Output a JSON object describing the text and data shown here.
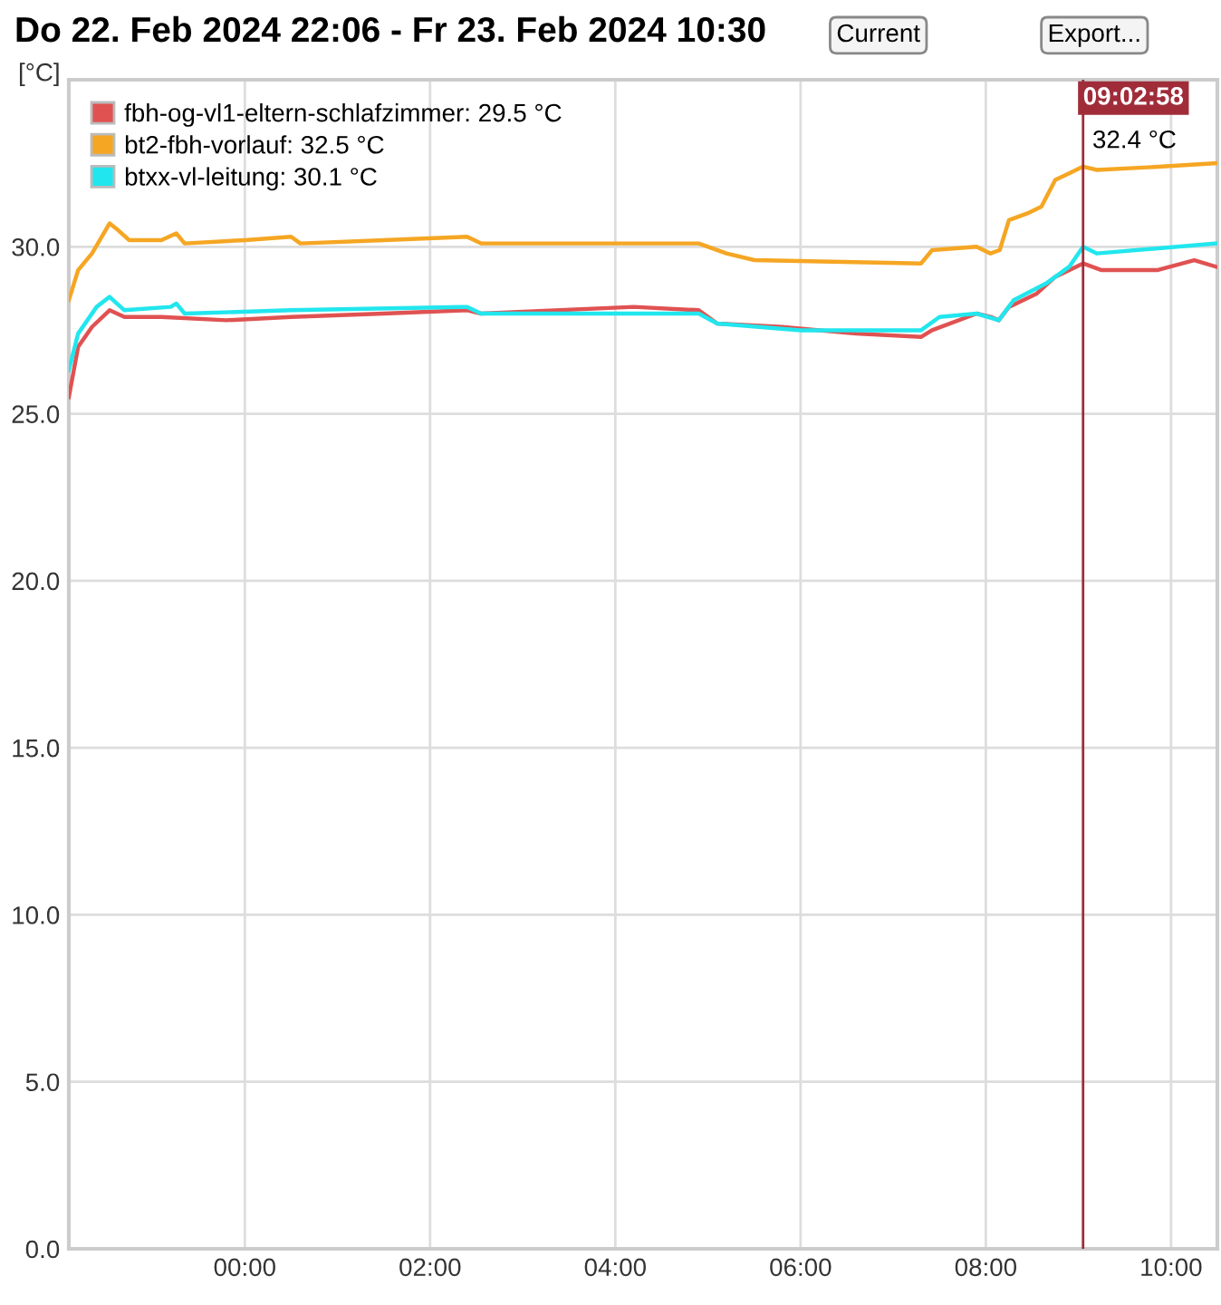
{
  "chart_data": {
    "type": "line",
    "title": "Do 22. Feb 2024 22:06 - Fr 23. Feb 2024 10:30",
    "ylabel": "[°C]",
    "annotations": [
      "Current",
      "Export...",
      {
        "text": "32.4 °C",
        "x": 9.05,
        "y": 32.4
      }
    ],
    "xlim": [
      -1.9,
      10.5
    ],
    "xticks": [
      {
        "value": 0,
        "label": "00:00"
      },
      {
        "value": 2,
        "label": "02:00"
      },
      {
        "value": 4,
        "label": "04:00"
      },
      {
        "value": 6,
        "label": "06:00"
      },
      {
        "value": 8,
        "label": "08:00"
      },
      {
        "value": 10,
        "label": "10:00"
      }
    ],
    "ylim": [
      0,
      35
    ],
    "yticks": [
      {
        "value": 0,
        "label": "0.0"
      },
      {
        "value": 5,
        "label": "5.0"
      },
      {
        "value": 10,
        "label": "10.0"
      },
      {
        "value": 15,
        "label": "15.0"
      },
      {
        "value": 20,
        "label": "20.0"
      },
      {
        "value": 25,
        "label": "25.0"
      },
      {
        "value": 30,
        "label": "30.0"
      }
    ],
    "grid": true,
    "legend": "top left",
    "marker": "none",
    "line_style": "solid",
    "ref_lines": [
      {
        "axis": "x",
        "value": 9.05,
        "label": "09:02:58",
        "color": "#a02c3a"
      }
    ],
    "series": [
      {
        "name": "fbh-og-vl1-eltern-schlafzimmer: 29.5 °C",
        "color": "#e05252",
        "x": [
          -1.9,
          -1.8,
          -1.65,
          -1.46,
          -1.3,
          -0.9,
          -0.2,
          0.5,
          1.5,
          2.4,
          2.55,
          4.2,
          4.9,
          5.1,
          5.8,
          6.6,
          7.3,
          7.42,
          7.9,
          8.05,
          8.14,
          8.25,
          8.55,
          8.75,
          9.05,
          9.25,
          9.85,
          10.25,
          10.49
        ],
        "values": [
          25.5,
          27.0,
          27.6,
          28.1,
          27.9,
          27.9,
          27.8,
          27.9,
          28.0,
          28.1,
          28.0,
          28.2,
          28.1,
          27.7,
          27.6,
          27.4,
          27.3,
          27.5,
          28.0,
          27.9,
          27.8,
          28.2,
          28.6,
          29.1,
          29.5,
          29.3,
          29.3,
          29.6,
          29.4
        ]
      },
      {
        "name": "bt2-fbh-vorlauf: 32.5 °C",
        "color": "#f5a623",
        "x": [
          -1.9,
          -1.8,
          -1.65,
          -1.46,
          -1.37,
          -1.25,
          -0.9,
          -0.74,
          -0.65,
          0.0,
          0.5,
          0.6,
          1.5,
          2.4,
          2.55,
          4.9,
          5.2,
          5.5,
          7.3,
          7.42,
          7.9,
          8.05,
          8.15,
          8.25,
          8.45,
          8.6,
          8.75,
          8.9,
          9.05,
          9.2,
          9.9,
          10.49
        ],
        "values": [
          28.4,
          29.3,
          29.8,
          30.7,
          30.5,
          30.2,
          30.2,
          30.4,
          30.1,
          30.2,
          30.3,
          30.1,
          30.2,
          30.3,
          30.1,
          30.1,
          29.8,
          29.6,
          29.5,
          29.9,
          30.0,
          29.8,
          29.9,
          30.8,
          31.0,
          31.2,
          32.0,
          32.2,
          32.4,
          32.3,
          32.4,
          32.5
        ]
      },
      {
        "name": "btxx-vl-leitung: 30.1 °C",
        "color": "#22e6ee",
        "x": [
          -1.9,
          -1.8,
          -1.6,
          -1.46,
          -1.3,
          -0.8,
          -0.74,
          -0.65,
          0.5,
          2.4,
          2.55,
          4.9,
          5.1,
          6.0,
          7.3,
          7.5,
          7.9,
          8.14,
          8.3,
          8.65,
          8.9,
          9.05,
          9.2,
          10.49
        ],
        "values": [
          26.3,
          27.4,
          28.2,
          28.5,
          28.1,
          28.2,
          28.3,
          28.0,
          28.1,
          28.2,
          28.0,
          28.0,
          27.7,
          27.5,
          27.5,
          27.9,
          28.0,
          27.8,
          28.4,
          28.9,
          29.4,
          30.0,
          29.8,
          30.1
        ]
      }
    ]
  }
}
